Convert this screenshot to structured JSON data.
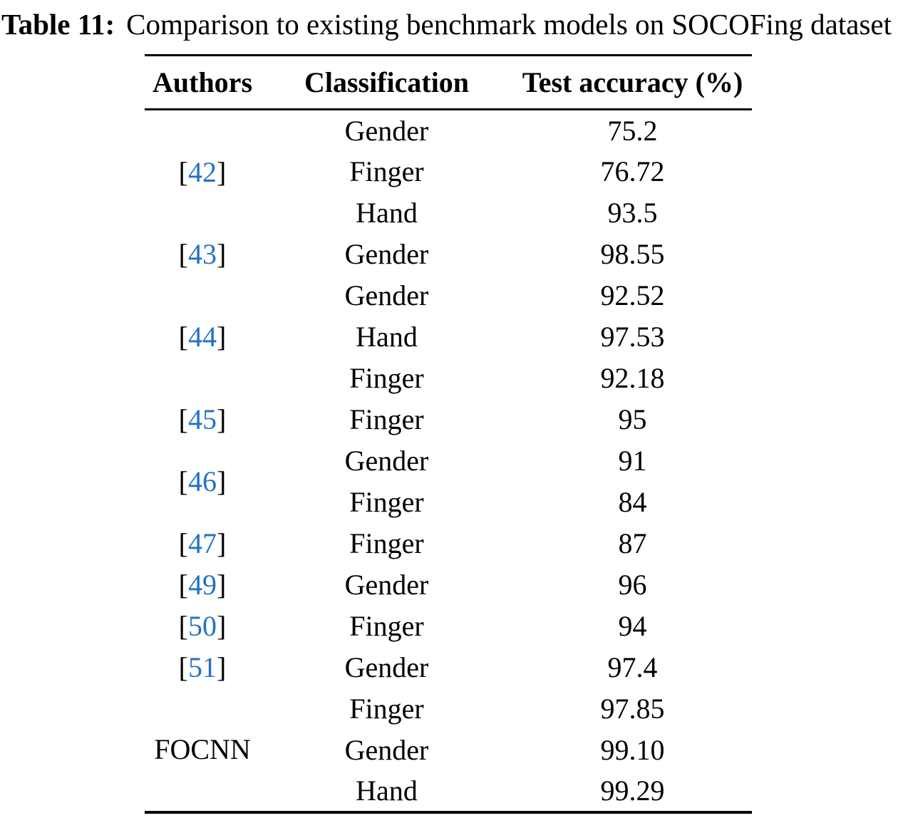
{
  "caption": {
    "label": "Table 11:",
    "text": "Comparison to existing benchmark models on SOCOFing dataset"
  },
  "colors": {
    "citation_blue": "#2272c4",
    "text": "#000000",
    "background": "#ffffff"
  },
  "table": {
    "columns": [
      "Authors",
      "Classification",
      "Test accuracy (%)"
    ],
    "groups": [
      {
        "author": "[42]",
        "rows": [
          {
            "classification": "Gender",
            "accuracy": "75.2"
          },
          {
            "classification": "Finger",
            "accuracy": "76.72"
          },
          {
            "classification": "Hand",
            "accuracy": "93.5"
          }
        ]
      },
      {
        "author": "[43]",
        "rows": [
          {
            "classification": "Gender",
            "accuracy": "98.55"
          }
        ]
      },
      {
        "author": "[44]",
        "rows": [
          {
            "classification": "Gender",
            "accuracy": "92.52"
          },
          {
            "classification": "Hand",
            "accuracy": "97.53"
          },
          {
            "classification": "Finger",
            "accuracy": "92.18"
          }
        ]
      },
      {
        "author": "[45]",
        "rows": [
          {
            "classification": "Finger",
            "accuracy": "95"
          }
        ]
      },
      {
        "author": "[46]",
        "rows": [
          {
            "classification": "Gender",
            "accuracy": "91"
          },
          {
            "classification": "Finger",
            "accuracy": "84"
          }
        ]
      },
      {
        "author": "[47]",
        "rows": [
          {
            "classification": "Finger",
            "accuracy": "87"
          }
        ]
      },
      {
        "author": "[49]",
        "rows": [
          {
            "classification": "Gender",
            "accuracy": "96"
          }
        ]
      },
      {
        "author": "[50]",
        "rows": [
          {
            "classification": "Finger",
            "accuracy": "94"
          }
        ]
      },
      {
        "author": "[51]",
        "rows": [
          {
            "classification": "Gender",
            "accuracy": "97.4"
          }
        ]
      },
      {
        "author": "FOCNN",
        "rows": [
          {
            "classification": "Finger",
            "accuracy": "97.85"
          },
          {
            "classification": "Gender",
            "accuracy": "99.10"
          },
          {
            "classification": "Hand",
            "accuracy": "99.29"
          }
        ]
      }
    ]
  }
}
